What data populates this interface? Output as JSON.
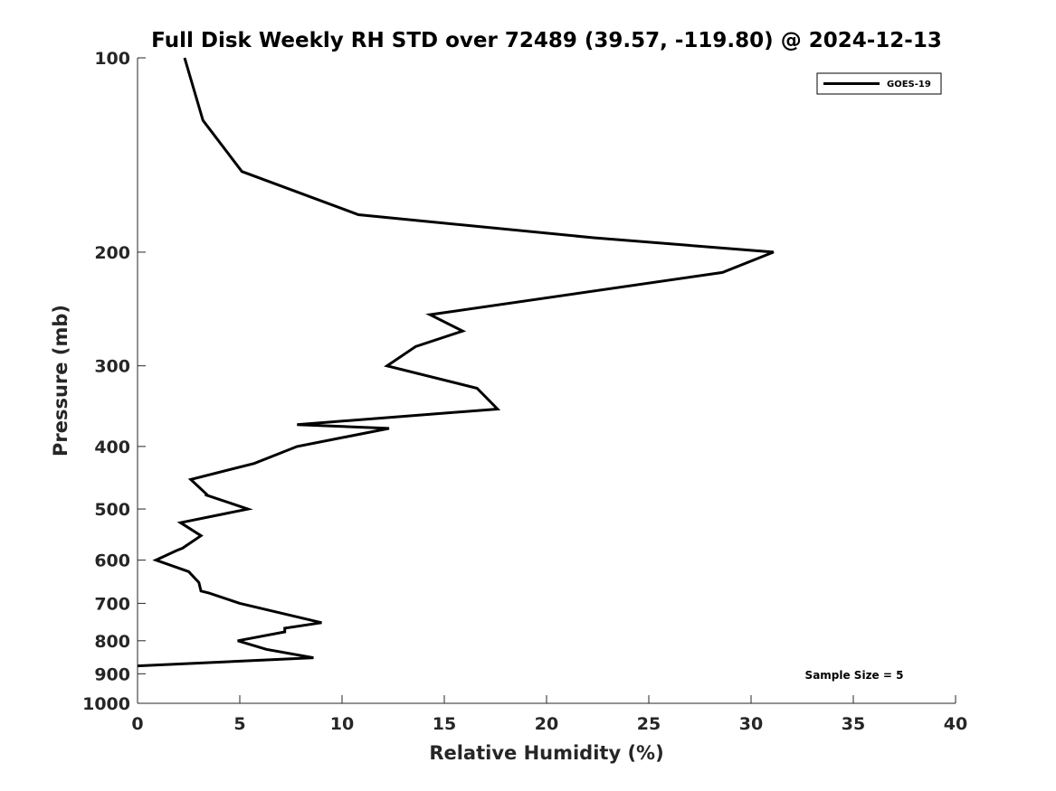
{
  "chart_data": {
    "type": "line",
    "title": "Full Disk Weekly RH STD over 72489 (39.57, -119.80) @ 2024-12-13",
    "xlabel": "Relative Humidity (%)",
    "ylabel": "Pressure (mb)",
    "xlim": [
      0,
      40
    ],
    "ylim": [
      100,
      1000
    ],
    "y_scale": "log",
    "y_reversed": true,
    "x_ticks": [
      "0",
      "5",
      "10",
      "15",
      "20",
      "25",
      "30",
      "35",
      "40"
    ],
    "y_ticks": [
      {
        "value": 100,
        "label": "100"
      },
      {
        "value": 200,
        "label": "200"
      },
      {
        "value": 300,
        "label": "300"
      },
      {
        "value": 400,
        "label": "400"
      },
      {
        "value": 500,
        "label": "500"
      },
      {
        "value": 600,
        "label": "600"
      },
      {
        "value": 700,
        "label": "700"
      },
      {
        "value": 800,
        "label": "800"
      },
      {
        "value": 900,
        "label": "900"
      },
      {
        "value": 1000,
        "label": "1000"
      }
    ],
    "grid": false,
    "legend_position": "top-right",
    "annotation": "Sample Size = 5",
    "series": [
      {
        "name": "GOES-19",
        "color": "#000000",
        "points": [
          {
            "x": 2.3,
            "y": 100
          },
          {
            "x": 3.2,
            "y": 125
          },
          {
            "x": 5.1,
            "y": 150
          },
          {
            "x": 10.8,
            "y": 175
          },
          {
            "x": 22.3,
            "y": 190
          },
          {
            "x": 31.1,
            "y": 200
          },
          {
            "x": 28.6,
            "y": 215
          },
          {
            "x": 14.3,
            "y": 250
          },
          {
            "x": 15.9,
            "y": 265
          },
          {
            "x": 13.6,
            "y": 280
          },
          {
            "x": 12.2,
            "y": 300
          },
          {
            "x": 16.6,
            "y": 325
          },
          {
            "x": 17.6,
            "y": 350
          },
          {
            "x": 7.8,
            "y": 370
          },
          {
            "x": 12.3,
            "y": 375
          },
          {
            "x": 7.8,
            "y": 400
          },
          {
            "x": 5.7,
            "y": 425
          },
          {
            "x": 2.6,
            "y": 450
          },
          {
            "x": 3.4,
            "y": 475
          },
          {
            "x": 3.3,
            "y": 475
          },
          {
            "x": 5.4,
            "y": 500
          },
          {
            "x": 2.1,
            "y": 525
          },
          {
            "x": 3.1,
            "y": 550
          },
          {
            "x": 2.2,
            "y": 575
          },
          {
            "x": 1.9,
            "y": 580
          },
          {
            "x": 0.9,
            "y": 600
          },
          {
            "x": 2.5,
            "y": 625
          },
          {
            "x": 3.0,
            "y": 650
          },
          {
            "x": 3.1,
            "y": 670
          },
          {
            "x": 3.5,
            "y": 675
          },
          {
            "x": 5.0,
            "y": 700
          },
          {
            "x": 9.0,
            "y": 750
          },
          {
            "x": 7.2,
            "y": 765
          },
          {
            "x": 7.2,
            "y": 775
          },
          {
            "x": 4.9,
            "y": 800
          },
          {
            "x": 6.3,
            "y": 825
          },
          {
            "x": 8.6,
            "y": 850
          },
          {
            "x": 0.0,
            "y": 875
          }
        ]
      }
    ]
  }
}
